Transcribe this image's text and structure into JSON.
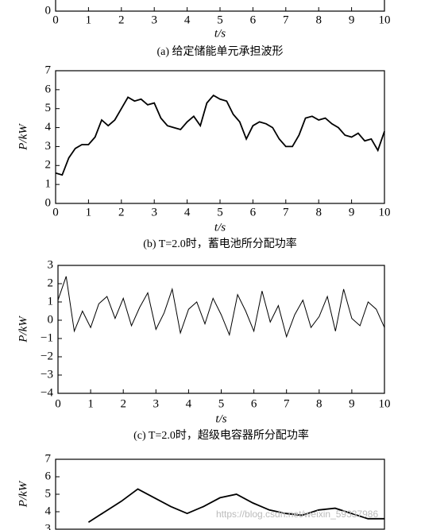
{
  "chart_data": [
    {
      "type": "line",
      "caption": "(a) 给定储能单元承担波形",
      "xlabel": "t/s",
      "xlim": [
        0,
        10
      ],
      "xticks": [
        0,
        1,
        2,
        3,
        4,
        5,
        6,
        7,
        8,
        9,
        10
      ],
      "yticks": [
        0
      ],
      "series": []
    },
    {
      "type": "line",
      "caption": "(b) T=2.0时，蓄电池所分配功率",
      "xlabel": "t/s",
      "ylabel": "P/kW",
      "xlim": [
        0,
        10
      ],
      "ylim": [
        0,
        7
      ],
      "xticks": [
        0,
        1,
        2,
        3,
        4,
        5,
        6,
        7,
        8,
        9,
        10
      ],
      "yticks": [
        0,
        1,
        2,
        3,
        4,
        5,
        6,
        7
      ],
      "series": [
        {
          "color": "#000000",
          "x": [
            0,
            0.2,
            0.4,
            0.6,
            0.8,
            1,
            1.2,
            1.4,
            1.6,
            1.8,
            2,
            2.2,
            2.4,
            2.6,
            2.8,
            3,
            3.2,
            3.4,
            3.6,
            3.8,
            4,
            4.2,
            4.4,
            4.6,
            4.8,
            5,
            5.2,
            5.4,
            5.6,
            5.8,
            6,
            6.2,
            6.4,
            6.6,
            6.8,
            7,
            7.2,
            7.4,
            7.6,
            7.8,
            8,
            8.2,
            8.4,
            8.6,
            8.8,
            9,
            9.2,
            9.4,
            9.6,
            9.8,
            10
          ],
          "values": [
            1.6,
            1.5,
            2.4,
            2.9,
            3.1,
            3.1,
            3.5,
            4.4,
            4.1,
            4.4,
            5.0,
            5.6,
            5.4,
            5.5,
            5.2,
            5.3,
            4.5,
            4.1,
            4.0,
            3.9,
            4.3,
            4.6,
            4.1,
            5.3,
            5.7,
            5.5,
            5.4,
            4.7,
            4.3,
            3.4,
            4.1,
            4.3,
            4.2,
            4.0,
            3.4,
            3.0,
            3.0,
            3.6,
            4.5,
            4.6,
            4.4,
            4.5,
            4.2,
            4.0,
            3.6,
            3.5,
            3.7,
            3.3,
            3.4,
            2.8,
            3.8
          ]
        }
      ]
    },
    {
      "type": "line",
      "caption": "(c) T=2.0时，超级电容器所分配功率",
      "xlabel": "t/s",
      "ylabel": "P/kW",
      "xlim": [
        0,
        10
      ],
      "ylim": [
        -4,
        3
      ],
      "xticks": [
        0,
        1,
        2,
        3,
        4,
        5,
        6,
        7,
        8,
        9,
        10
      ],
      "yticks": [
        {
          "value": -4,
          "label": "−4"
        },
        {
          "value": -3,
          "label": "−3"
        },
        {
          "value": -2,
          "label": "−2"
        },
        {
          "value": -1,
          "label": "−1"
        },
        0,
        1,
        2,
        3
      ],
      "series": [
        {
          "color": "#000000",
          "x": [
            0,
            0.25,
            0.5,
            0.75,
            1,
            1.25,
            1.5,
            1.75,
            2,
            2.25,
            2.5,
            2.75,
            3,
            3.25,
            3.5,
            3.75,
            4,
            4.25,
            4.5,
            4.75,
            5,
            5.25,
            5.5,
            5.75,
            6,
            6.25,
            6.5,
            6.75,
            7,
            7.25,
            7.5,
            7.75,
            8,
            8.25,
            8.5,
            8.75,
            9,
            9.25,
            9.5,
            9.75,
            10
          ],
          "values": [
            1.1,
            2.4,
            -0.6,
            0.5,
            -0.4,
            0.9,
            1.3,
            0.1,
            1.2,
            -0.3,
            0.7,
            1.5,
            -0.5,
            0.4,
            1.7,
            -0.7,
            0.6,
            1.0,
            -0.2,
            1.2,
            0.3,
            -0.8,
            1.4,
            0.5,
            -0.6,
            1.6,
            -0.1,
            0.8,
            -0.9,
            0.3,
            1.1,
            -0.4,
            0.2,
            1.3,
            -0.6,
            1.7,
            0.1,
            -0.3,
            1.0,
            0.6,
            -0.4
          ]
        }
      ]
    },
    {
      "type": "line",
      "ylabel": "P/kW",
      "watermark": "https://blog.csdn.net/weixin_59337986",
      "xlim": [
        0,
        10
      ],
      "ylim": [
        3,
        7
      ],
      "yticks": [
        3,
        4,
        5,
        6,
        7
      ],
      "series": [
        {
          "color": "#000000",
          "x": [
            1,
            1.5,
            2,
            2.5,
            3,
            3.5,
            4,
            4.5,
            5,
            5.5,
            6,
            6.5,
            7,
            7.5,
            8,
            8.5,
            9,
            9.5,
            10
          ],
          "values": [
            3.4,
            4.0,
            4.6,
            5.3,
            4.8,
            4.3,
            3.9,
            4.3,
            4.8,
            5.0,
            4.5,
            4.1,
            3.9,
            3.8,
            4.1,
            4.2,
            3.9,
            3.6,
            3.6
          ]
        }
      ]
    }
  ]
}
